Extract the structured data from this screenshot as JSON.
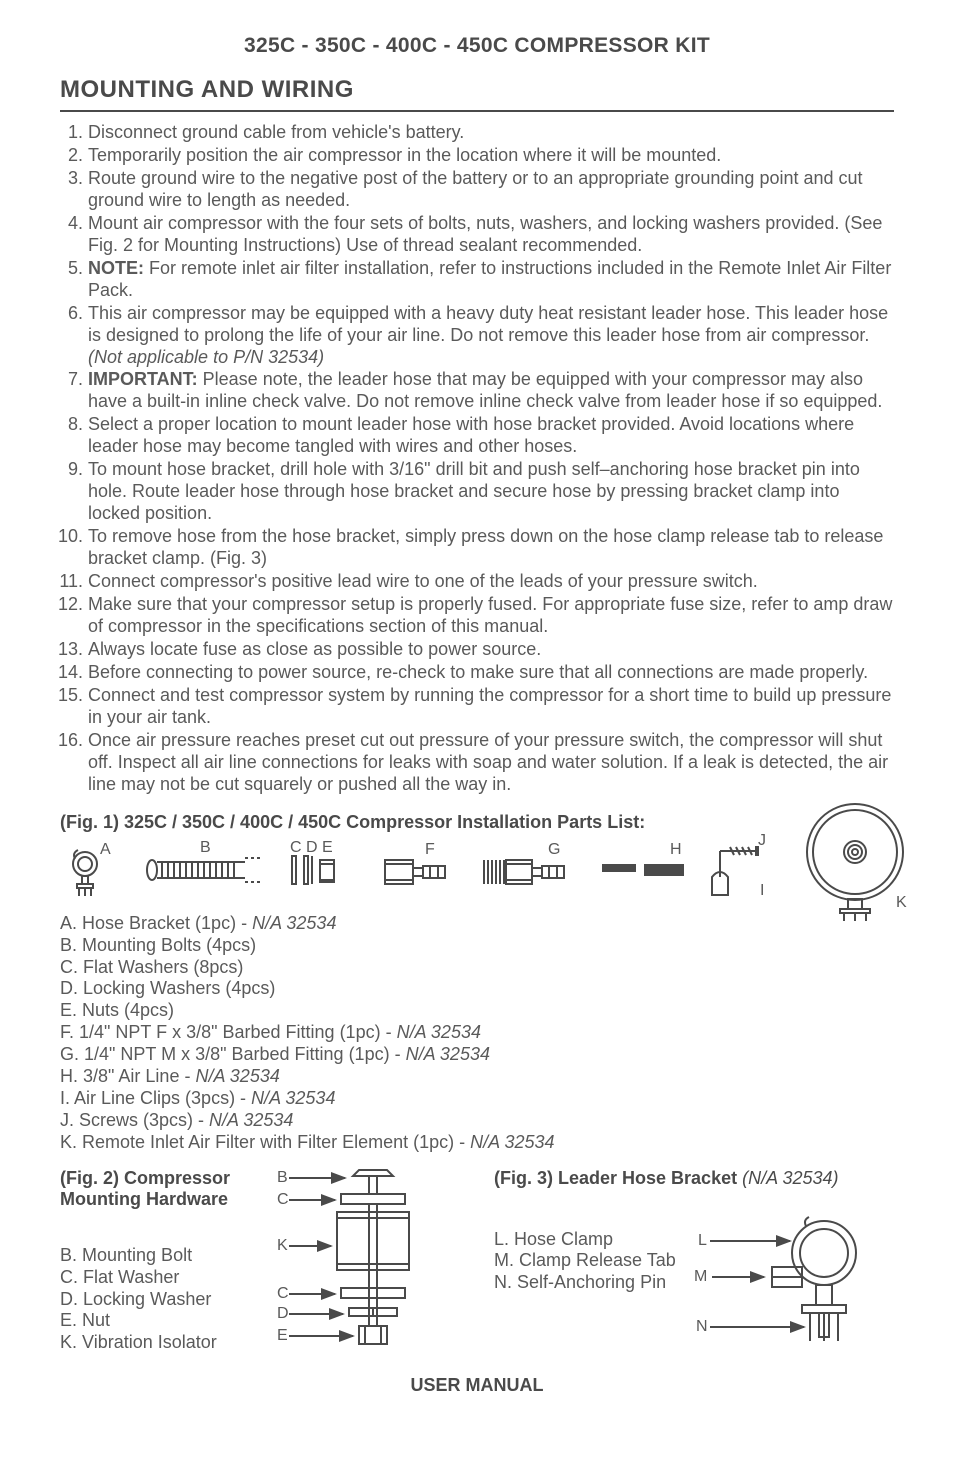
{
  "colors": {
    "text": "#4a4a4a",
    "body": "#5a5a5a",
    "rule": "#4a4a4a",
    "bg": "#ffffff"
  },
  "docTitle": "325C - 350C - 400C - 450C COMPRESSOR KIT",
  "sectionTitle": "MOUNTING AND WIRING",
  "steps": [
    "Disconnect ground cable from vehicle's battery.",
    "Temporarily position the air compressor in the location where it will be mounted.",
    "Route ground wire to the negative post of the battery or to an appropriate grounding point and cut ground wire to length as needed.",
    "Mount air compressor with the four sets of bolts, nuts, washers, and locking  washers provided.  (See Fig. 2 for Mounting Instructions) Use of thread sealant recommended.",
    "<span class='bold'>NOTE:</span> For remote inlet air filter installation, refer to instructions included in the Remote Inlet Air Filter Pack.",
    "This air compressor may be equipped with a heavy duty heat resistant leader hose.  This leader hose is designed to prolong the life of your air line.  Do not remove this leader hose from air compressor. <span class='ital'>(Not applicable to P/N 32534)</span>",
    "<span class='bold'>IMPORTANT:</span> Please note, the leader hose that may be equipped with your compressor may also have a built-in inline check valve.  Do not remove inline check valve from leader hose if so equipped.",
    "Select a proper location to mount leader hose with hose bracket provided.  Avoid locations where leader hose may become tangled with wires and other hoses.",
    "To mount hose bracket, drill hole with 3/16\" drill bit and push self–anchoring hose bracket pin into hole.  Route leader hose through hose bracket and secure hose by pressing bracket clamp into locked position.",
    "To remove hose from the hose bracket, simply press down on the hose clamp release tab to release bracket clamp. (Fig. 3)",
    "Connect compressor's positive lead wire to one of the leads of your pressure switch.",
    "Make sure that your compressor setup is properly fused.  For appropriate fuse size, refer to amp draw of compressor in the specifications section of this manual.",
    "Always locate fuse as close as possible to power source.",
    "Before connecting to power source, re-check to make sure that all connections are made properly.",
    "Connect and test compressor system by running the compressor for a short time to build up pressure in your air tank.",
    "Once air pressure reaches preset cut out pressure of your pressure switch, the compressor will shut off.   Inspect all air line connections for leaks with soap and water solution.  If a leak is detected, the air line may not be cut squarely or pushed all the way in."
  ],
  "fig1": {
    "title": "(Fig. 1) 325C / 350C / 400C / 450C Compressor Installation Parts List:",
    "labels": [
      "A",
      "B",
      "C",
      "D",
      "E",
      "F",
      "G",
      "H",
      "I",
      "J",
      "K"
    ],
    "parts": [
      "A. Hose Bracket (1pc) - <span class='ital'>N/A 32534</span>",
      "B. Mounting Bolts (4pcs)",
      "C. Flat Washers (8pcs)",
      "D. Locking Washers (4pcs)",
      "E. Nuts (4pcs)",
      "F.  1/4\" NPT F x 3/8\" Barbed Fitting (1pc) - <span class='ital'>N/A 32534</span>",
      "G. 1/4\" NPT M x 3/8\" Barbed Fitting (1pc) - <span class='ital'>N/A 32534</span>",
      "H. 3/8\" Air Line - <span class='ital'>N/A 32534</span>",
      "I. Air Line Clips (3pcs) - <span class='ital'>N/A 32534</span>",
      "J.  Screws (3pcs) - <span class='ital'>N/A 32534</span>",
      "K. Remote Inlet Air Filter with Filter Element (1pc) - <span class='ital'>N/A 32534</span>"
    ]
  },
  "fig2": {
    "title": "(Fig. 2)  Compressor Mounting Hardware",
    "labels": [
      "B",
      "C",
      "K",
      "C",
      "D",
      "E"
    ],
    "list": [
      "B. Mounting Bolt",
      "C. Flat Washer",
      "D. Locking Washer",
      "E. Nut",
      "K. Vibration Isolator"
    ]
  },
  "fig3": {
    "title": "(Fig. 3) Leader Hose Bracket",
    "title_note": "(N/A 32534)",
    "labels": [
      "L",
      "M",
      "N"
    ],
    "list": [
      "L.   Hose Clamp",
      "M. Clamp Release Tab",
      "N.  Self-Anchoring Pin"
    ]
  },
  "footer": "USER MANUAL"
}
